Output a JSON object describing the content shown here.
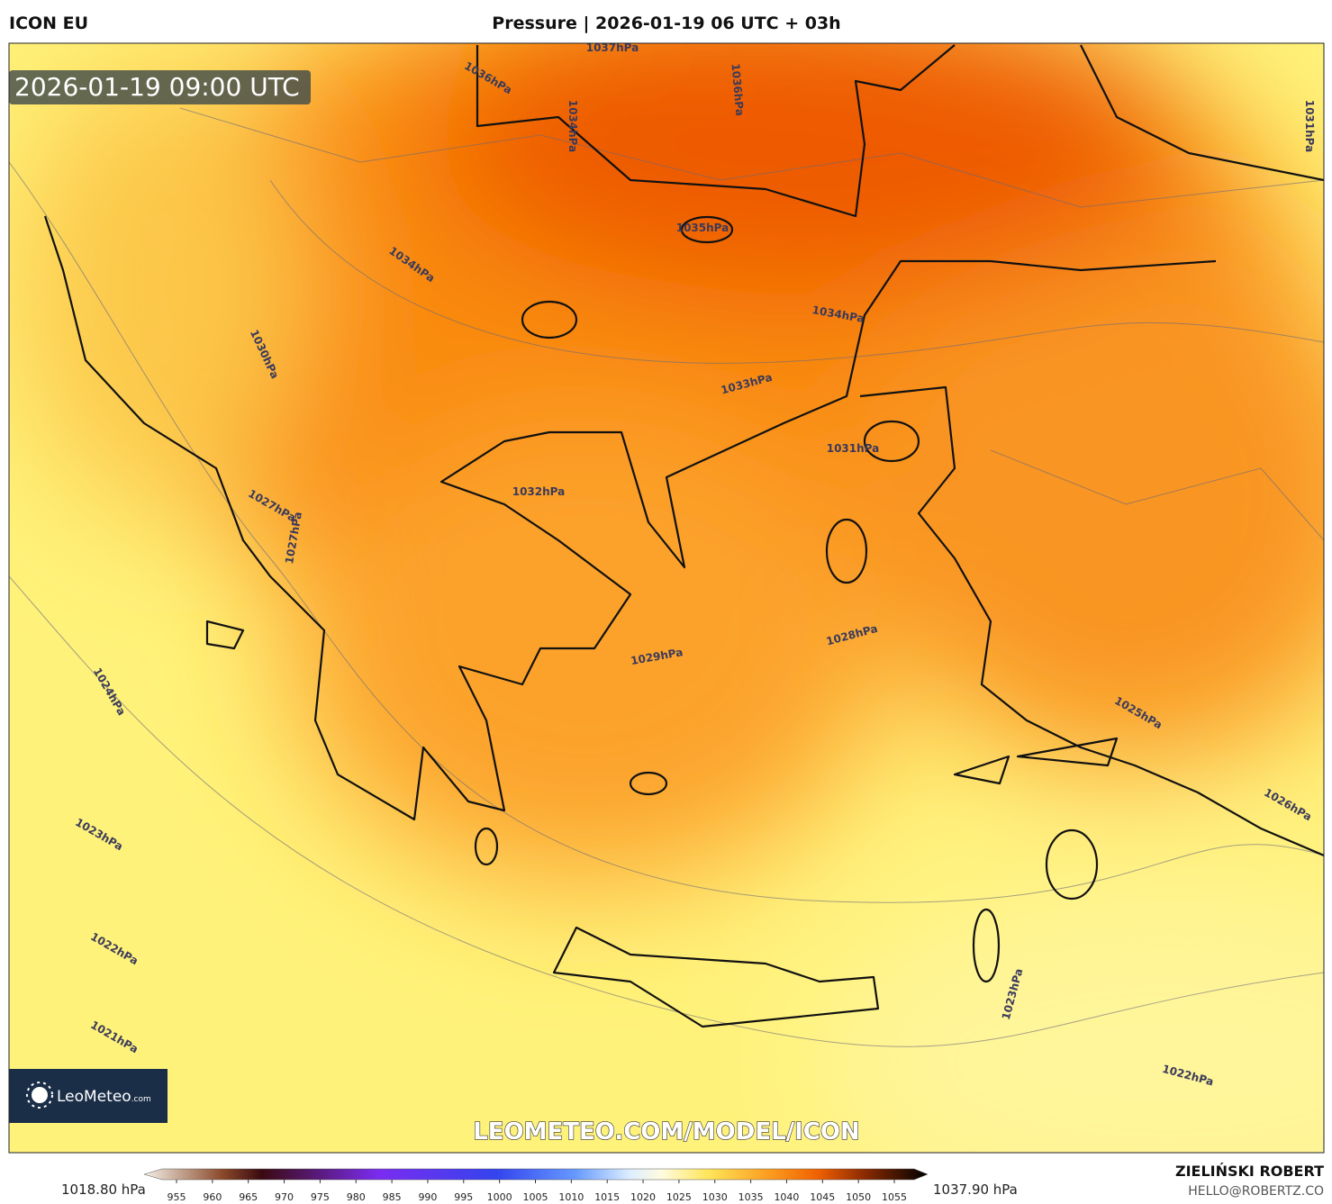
{
  "header": {
    "model": "ICON EU",
    "title": "Pressure | 2026-01-19 06 UTC + 03h"
  },
  "map": {
    "valid_time": "2026-01-19 09:00 UTC",
    "contour_labels": [
      "1037hPa",
      "1036hPa",
      "1036hPa",
      "1034hPa",
      "1031hPa",
      "1035hPa",
      "1034hPa",
      "1034hPa",
      "1033hPa",
      "1030hPa",
      "1031hPa",
      "1032hPa",
      "1027hPa",
      "1027hPa",
      "1028hPa",
      "1029hPa",
      "1024hPa",
      "1025hPa",
      "1026hPa",
      "1023hPa",
      "1022hPa",
      "1021hPa",
      "1023hPa",
      "1022hPa"
    ],
    "logo": {
      "name": "LeoMeteo",
      "suffix": ".com"
    },
    "watermark": "LEOMETEO.COM/MODEL/ICON"
  },
  "colorbar": {
    "min_label": "1018.80 hPa",
    "max_label": "1037.90 hPa",
    "ticks": [
      955,
      960,
      965,
      970,
      975,
      980,
      985,
      990,
      995,
      1000,
      1005,
      1010,
      1015,
      1020,
      1025,
      1030,
      1035,
      1040,
      1045,
      1050,
      1055
    ]
  },
  "footer": {
    "author": "ZIELIŃSKI ROBERT",
    "email": "HELLO@ROBERTZ.CO"
  }
}
